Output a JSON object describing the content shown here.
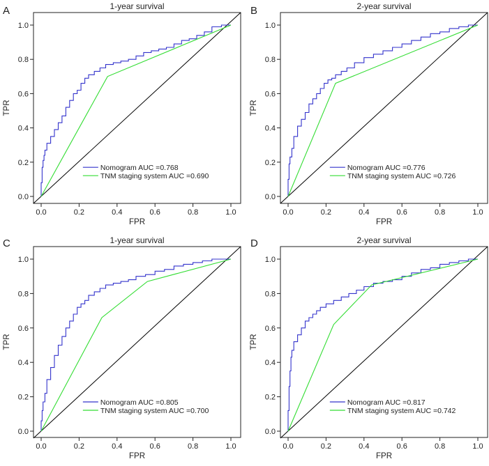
{
  "colors": {
    "nomogram": "#3333cc",
    "tnm": "#33dd33",
    "diagonal": "#000000",
    "axis": "#222222"
  },
  "chart_data": [
    {
      "type": "line",
      "panel": "A",
      "title": "1-year survival",
      "xlabel": "FPR",
      "ylabel": "TPR",
      "xlim": [
        0,
        1
      ],
      "ylim": [
        0,
        1
      ],
      "xticks": [
        "0.0",
        "0.2",
        "0.4",
        "0.6",
        "0.8",
        "1.0"
      ],
      "yticks": [
        "0.0",
        "0.2",
        "0.4",
        "0.6",
        "0.8",
        "1.0"
      ],
      "legend_position": "bottom-right",
      "series": [
        {
          "name": "Nomogram AUC =0.768",
          "color": "#3333cc",
          "x": [
            0,
            0.005,
            0.01,
            0.015,
            0.02,
            0.03,
            0.05,
            0.07,
            0.09,
            0.11,
            0.13,
            0.15,
            0.17,
            0.19,
            0.21,
            0.23,
            0.25,
            0.28,
            0.31,
            0.34,
            0.38,
            0.42,
            0.46,
            0.5,
            0.54,
            0.58,
            0.62,
            0.66,
            0.7,
            0.74,
            0.78,
            0.82,
            0.86,
            0.9,
            0.95,
            1.0
          ],
          "y": [
            0,
            0.08,
            0.17,
            0.21,
            0.24,
            0.27,
            0.31,
            0.35,
            0.39,
            0.43,
            0.47,
            0.52,
            0.56,
            0.6,
            0.62,
            0.66,
            0.69,
            0.71,
            0.73,
            0.75,
            0.77,
            0.78,
            0.79,
            0.8,
            0.82,
            0.84,
            0.85,
            0.86,
            0.87,
            0.89,
            0.91,
            0.92,
            0.94,
            0.96,
            0.99,
            1.0
          ]
        },
        {
          "name": "TNM staging system AUC =0.690",
          "color": "#33dd33",
          "x": [
            0,
            0.35,
            1.0
          ],
          "y": [
            0,
            0.7,
            1.0
          ]
        }
      ]
    },
    {
      "type": "line",
      "panel": "B",
      "title": "2-year survival",
      "xlabel": "FPR",
      "ylabel": "TPR",
      "xlim": [
        0,
        1
      ],
      "ylim": [
        0,
        1
      ],
      "xticks": [
        "0.0",
        "0.2",
        "0.4",
        "0.6",
        "0.8",
        "1.0"
      ],
      "yticks": [
        "0.0",
        "0.2",
        "0.4",
        "0.6",
        "0.8",
        "1.0"
      ],
      "legend_position": "bottom-right",
      "series": [
        {
          "name": "Nomogram AUC =0.776",
          "color": "#3333cc",
          "x": [
            0,
            0.005,
            0.01,
            0.02,
            0.03,
            0.05,
            0.07,
            0.09,
            0.11,
            0.13,
            0.15,
            0.17,
            0.19,
            0.21,
            0.23,
            0.25,
            0.28,
            0.31,
            0.35,
            0.4,
            0.45,
            0.5,
            0.55,
            0.6,
            0.65,
            0.7,
            0.75,
            0.8,
            0.85,
            0.9,
            0.95,
            1.0
          ],
          "y": [
            0,
            0.1,
            0.19,
            0.23,
            0.28,
            0.35,
            0.41,
            0.45,
            0.49,
            0.54,
            0.57,
            0.6,
            0.63,
            0.66,
            0.68,
            0.69,
            0.71,
            0.73,
            0.75,
            0.78,
            0.81,
            0.83,
            0.85,
            0.87,
            0.89,
            0.91,
            0.93,
            0.95,
            0.96,
            0.98,
            0.99,
            1.0
          ]
        },
        {
          "name": "TNM staging system AUC =0.726",
          "color": "#33dd33",
          "x": [
            0,
            0.25,
            1.0
          ],
          "y": [
            0,
            0.66,
            1.0
          ]
        }
      ]
    },
    {
      "type": "line",
      "panel": "C",
      "title": "1-year survival",
      "xlabel": "FPR",
      "ylabel": "TPR",
      "xlim": [
        0,
        1
      ],
      "ylim": [
        0,
        1
      ],
      "xticks": [
        "0.0",
        "0.2",
        "0.4",
        "0.6",
        "0.8",
        "1.0"
      ],
      "yticks": [
        "0.0",
        "0.2",
        "0.4",
        "0.6",
        "0.8",
        "1.0"
      ],
      "legend_position": "bottom-right",
      "series": [
        {
          "name": "Nomogram AUC =0.805",
          "color": "#3333cc",
          "x": [
            0,
            0.005,
            0.01,
            0.02,
            0.03,
            0.05,
            0.07,
            0.09,
            0.11,
            0.13,
            0.15,
            0.17,
            0.19,
            0.21,
            0.23,
            0.25,
            0.28,
            0.31,
            0.34,
            0.38,
            0.42,
            0.46,
            0.5,
            0.55,
            0.6,
            0.65,
            0.7,
            0.75,
            0.8,
            0.85,
            0.9,
            0.95,
            1.0
          ],
          "y": [
            0,
            0.06,
            0.12,
            0.17,
            0.22,
            0.3,
            0.37,
            0.44,
            0.5,
            0.55,
            0.6,
            0.64,
            0.68,
            0.72,
            0.74,
            0.76,
            0.79,
            0.81,
            0.83,
            0.85,
            0.86,
            0.87,
            0.88,
            0.9,
            0.91,
            0.93,
            0.94,
            0.96,
            0.97,
            0.98,
            0.99,
            1.0,
            1.0
          ]
        },
        {
          "name": "TNM staging system AUC =0.700",
          "color": "#33dd33",
          "x": [
            0,
            0.32,
            0.56,
            1.0
          ],
          "y": [
            0,
            0.66,
            0.87,
            1.0
          ]
        }
      ]
    },
    {
      "type": "line",
      "panel": "D",
      "title": "2-year survival",
      "xlabel": "FPR",
      "ylabel": "TPR",
      "xlim": [
        0,
        1
      ],
      "ylim": [
        0,
        1
      ],
      "xticks": [
        "0.0",
        "0.2",
        "0.4",
        "0.6",
        "0.8",
        "1.0"
      ],
      "yticks": [
        "0.0",
        "0.2",
        "0.4",
        "0.6",
        "0.8",
        "1.0"
      ],
      "legend_position": "bottom-right",
      "series": [
        {
          "name": "Nomogram AUC =0.817",
          "color": "#3333cc",
          "x": [
            0,
            0.005,
            0.01,
            0.015,
            0.02,
            0.03,
            0.05,
            0.07,
            0.09,
            0.11,
            0.13,
            0.15,
            0.17,
            0.2,
            0.24,
            0.28,
            0.32,
            0.36,
            0.4,
            0.45,
            0.5,
            0.55,
            0.6,
            0.65,
            0.7,
            0.75,
            0.8,
            0.85,
            0.9,
            0.95,
            1.0
          ],
          "y": [
            0,
            0.12,
            0.26,
            0.35,
            0.43,
            0.47,
            0.52,
            0.56,
            0.6,
            0.64,
            0.66,
            0.68,
            0.7,
            0.72,
            0.74,
            0.76,
            0.78,
            0.8,
            0.82,
            0.84,
            0.86,
            0.87,
            0.88,
            0.9,
            0.92,
            0.94,
            0.95,
            0.97,
            0.98,
            0.99,
            1.0
          ]
        },
        {
          "name": "TNM staging system AUC =0.742",
          "color": "#33dd33",
          "x": [
            0,
            0.24,
            0.44,
            1.0
          ],
          "y": [
            0,
            0.62,
            0.85,
            1.0
          ]
        }
      ]
    }
  ]
}
